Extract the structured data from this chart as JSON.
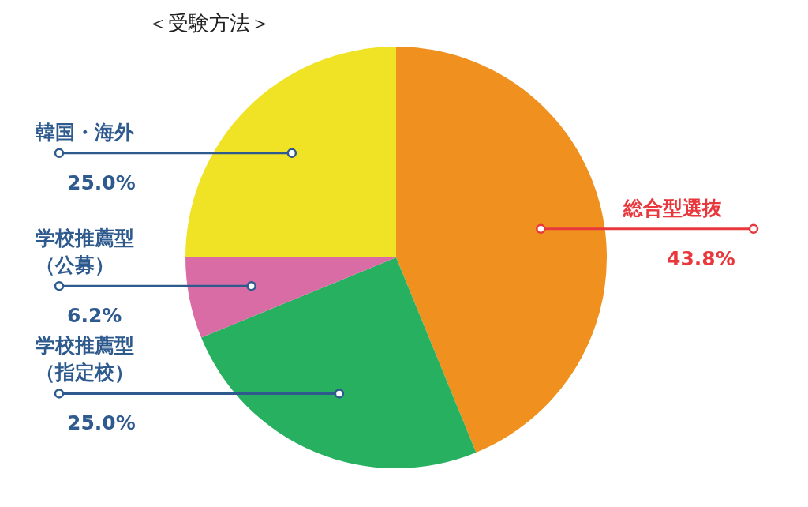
{
  "chart_data": {
    "type": "pie",
    "title": "＜受験方法＞",
    "categories": [
      "総合型選抜",
      "学校推薦型（指定校）",
      "学校推薦型（公募）",
      "韓国・海外"
    ],
    "values": [
      43.8,
      25.0,
      6.2,
      25.0
    ],
    "value_labels": [
      "43.8%",
      "25.0%",
      "6.2%",
      "25.0%"
    ],
    "colors": [
      "#f0901e",
      "#27b060",
      "#d96ca5",
      "#f0e224"
    ]
  }
}
